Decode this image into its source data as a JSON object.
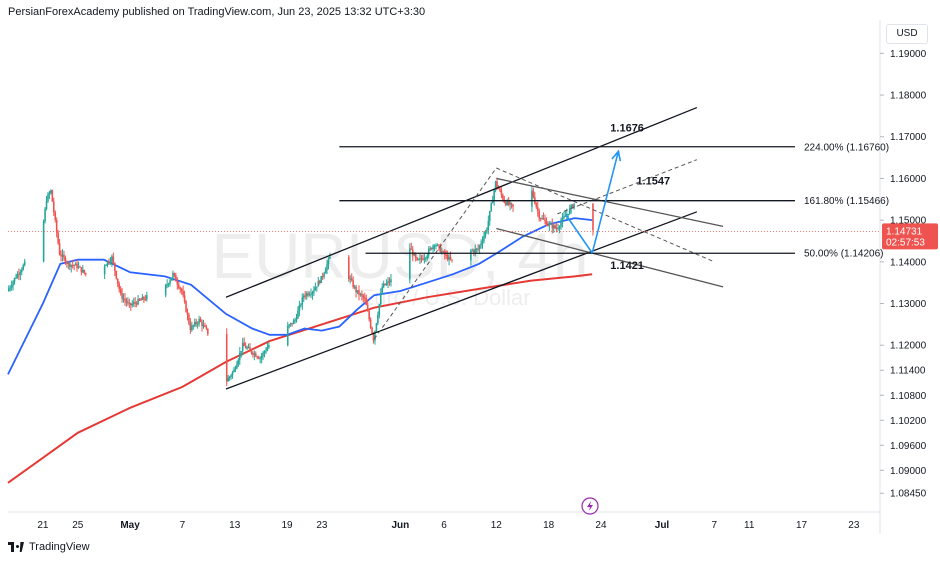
{
  "header": {
    "text": "PersianForexAcademy published on TradingView.com, Jun 23, 2025 13:32 UTC+3:30"
  },
  "footer": {
    "brand": "TradingView"
  },
  "currency_button": "USD",
  "watermark": {
    "symbol": "EURUSD, 4h",
    "name": "Euro / U.S. Dollar"
  },
  "colors": {
    "up": "#26a69a",
    "down": "#ef5350",
    "ma_fast": "#2962ff",
    "ma_slow": "#e53935",
    "text": "#131722",
    "price_tag": "#ef5350",
    "arrow": "#2196f3"
  },
  "chart_data": {
    "type": "candlestick",
    "symbol": "EURUSD",
    "timeframe": "4h",
    "x_range": [
      "2025-04-17",
      "2025-07-26"
    ],
    "ylim": [
      1.08,
      1.198
    ],
    "x_ticks": [
      {
        "label": "21",
        "date": "2025-04-21"
      },
      {
        "label": "25",
        "date": "2025-04-25"
      },
      {
        "label": "May",
        "date": "2025-05-01"
      },
      {
        "label": "7",
        "date": "2025-05-07"
      },
      {
        "label": "13",
        "date": "2025-05-13"
      },
      {
        "label": "19",
        "date": "2025-05-19"
      },
      {
        "label": "23",
        "date": "2025-05-23"
      },
      {
        "label": "Jun",
        "date": "2025-06-01"
      },
      {
        "label": "6",
        "date": "2025-06-06"
      },
      {
        "label": "12",
        "date": "2025-06-12"
      },
      {
        "label": "18",
        "date": "2025-06-18"
      },
      {
        "label": "24",
        "date": "2025-06-24"
      },
      {
        "label": "Jul",
        "date": "2025-07-01"
      },
      {
        "label": "7",
        "date": "2025-07-07"
      },
      {
        "label": "11",
        "date": "2025-07-11"
      },
      {
        "label": "17",
        "date": "2025-07-17"
      },
      {
        "label": "23",
        "date": "2025-07-23"
      }
    ],
    "y_ticks": [
      "1.19000",
      "1.18000",
      "1.17000",
      "1.16000",
      "1.15000",
      "1.14000",
      "1.13000",
      "1.12000",
      "1.11400",
      "1.10800",
      "1.10200",
      "1.09600",
      "1.09000",
      "1.08450"
    ],
    "last_price": {
      "value": 1.14731,
      "label": "1.14731",
      "countdown": "02:57:53"
    },
    "price_path": [
      [
        "2025-04-17",
        1.133
      ],
      [
        "2025-04-18",
        1.1365
      ],
      [
        "2025-04-19",
        1.1395
      ],
      [
        "2025-04-20",
        1.1405
      ],
      [
        "2025-04-21",
        1.147
      ],
      [
        "2025-04-21T12",
        1.155
      ],
      [
        "2025-04-22",
        1.157
      ],
      [
        "2025-04-23",
        1.142
      ],
      [
        "2025-04-24",
        1.1395
      ],
      [
        "2025-04-25",
        1.139
      ],
      [
        "2025-04-26",
        1.137
      ],
      [
        "2025-04-28",
        1.139
      ],
      [
        "2025-04-29",
        1.141
      ],
      [
        "2025-04-30",
        1.132
      ],
      [
        "2025-05-01",
        1.1295
      ],
      [
        "2025-05-02",
        1.1305
      ],
      [
        "2025-05-05",
        1.1335
      ],
      [
        "2025-05-06",
        1.137
      ],
      [
        "2025-05-07",
        1.133
      ],
      [
        "2025-05-08",
        1.124
      ],
      [
        "2025-05-09",
        1.126
      ],
      [
        "2025-05-10",
        1.123
      ],
      [
        "2025-05-11",
        1.125
      ],
      [
        "2025-05-12",
        1.111
      ],
      [
        "2025-05-13",
        1.114
      ],
      [
        "2025-05-14",
        1.12
      ],
      [
        "2025-05-15",
        1.1185
      ],
      [
        "2025-05-16",
        1.117
      ],
      [
        "2025-05-17",
        1.12
      ],
      [
        "2025-05-19",
        1.124
      ],
      [
        "2025-05-20",
        1.126
      ],
      [
        "2025-05-21",
        1.132
      ],
      [
        "2025-05-22",
        1.133
      ],
      [
        "2025-05-23",
        1.136
      ],
      [
        "2025-05-24",
        1.141
      ],
      [
        "2025-05-25",
        1.14
      ],
      [
        "2025-05-26",
        1.137
      ],
      [
        "2025-05-27",
        1.133
      ],
      [
        "2025-05-28",
        1.131
      ],
      [
        "2025-05-29",
        1.1215
      ],
      [
        "2025-05-30",
        1.134
      ],
      [
        "2025-06-01",
        1.137
      ],
      [
        "2025-06-02",
        1.144
      ],
      [
        "2025-06-03",
        1.14
      ],
      [
        "2025-06-04",
        1.1415
      ],
      [
        "2025-06-05",
        1.1445
      ],
      [
        "2025-06-06",
        1.142
      ],
      [
        "2025-06-07",
        1.14
      ],
      [
        "2025-06-08",
        1.141
      ],
      [
        "2025-06-09",
        1.1425
      ],
      [
        "2025-06-10",
        1.143
      ],
      [
        "2025-06-11",
        1.148
      ],
      [
        "2025-06-12",
        1.159
      ],
      [
        "2025-06-13",
        1.1545
      ],
      [
        "2025-06-14",
        1.153
      ],
      [
        "2025-06-15",
        1.156
      ],
      [
        "2025-06-16",
        1.158
      ],
      [
        "2025-06-17",
        1.151
      ],
      [
        "2025-06-18",
        1.149
      ],
      [
        "2025-06-19",
        1.148
      ],
      [
        "2025-06-20",
        1.151
      ],
      [
        "2025-06-21",
        1.154
      ],
      [
        "2025-06-22",
        1.147
      ],
      [
        "2025-06-23",
        1.1473
      ]
    ],
    "ma_fast_path": [
      [
        "2025-04-17",
        1.113
      ],
      [
        "2025-04-21",
        1.13
      ],
      [
        "2025-04-23",
        1.1395
      ],
      [
        "2025-04-25",
        1.1405
      ],
      [
        "2025-04-28",
        1.1405
      ],
      [
        "2025-05-01",
        1.1375
      ],
      [
        "2025-05-05",
        1.1365
      ],
      [
        "2025-05-08",
        1.1345
      ],
      [
        "2025-05-10",
        1.131
      ],
      [
        "2025-05-12",
        1.1275
      ],
      [
        "2025-05-15",
        1.124
      ],
      [
        "2025-05-17",
        1.1225
      ],
      [
        "2025-05-19",
        1.1225
      ],
      [
        "2025-05-21",
        1.124
      ],
      [
        "2025-05-23",
        1.1235
      ],
      [
        "2025-05-25",
        1.1245
      ],
      [
        "2025-05-27",
        1.1285
      ],
      [
        "2025-05-29",
        1.132
      ],
      [
        "2025-06-01",
        1.133
      ],
      [
        "2025-06-04",
        1.135
      ],
      [
        "2025-06-07",
        1.137
      ],
      [
        "2025-06-10",
        1.1395
      ],
      [
        "2025-06-12",
        1.142
      ],
      [
        "2025-06-15",
        1.146
      ],
      [
        "2025-06-18",
        1.149
      ],
      [
        "2025-06-21",
        1.1505
      ],
      [
        "2025-06-23",
        1.15
      ]
    ],
    "ma_slow_path": [
      [
        "2025-04-17",
        1.087
      ],
      [
        "2025-04-21",
        1.093
      ],
      [
        "2025-04-25",
        1.099
      ],
      [
        "2025-05-01",
        1.105
      ],
      [
        "2025-05-07",
        1.11
      ],
      [
        "2025-05-12",
        1.116
      ],
      [
        "2025-05-17",
        1.121
      ],
      [
        "2025-05-23",
        1.125
      ],
      [
        "2025-05-29",
        1.129
      ],
      [
        "2025-06-04",
        1.1315
      ],
      [
        "2025-06-10",
        1.1335
      ],
      [
        "2025-06-16",
        1.1355
      ],
      [
        "2025-06-21",
        1.1365
      ],
      [
        "2025-06-23",
        1.137
      ]
    ],
    "annotations": {
      "channel_lines": [
        {
          "from": [
            "2025-05-12",
            1.1095
          ],
          "to": [
            "2025-07-05",
            1.152
          ],
          "color": "#131722"
        },
        {
          "from": [
            "2025-05-12",
            1.1315
          ],
          "to": [
            "2025-07-05",
            1.177
          ],
          "color": "#131722"
        },
        {
          "from": [
            "2025-06-12",
            1.16
          ],
          "to": [
            "2025-07-08",
            1.1485
          ],
          "color": "#555555"
        },
        {
          "from": [
            "2025-06-12",
            1.148
          ],
          "to": [
            "2025-07-08",
            1.134
          ],
          "color": "#555555"
        }
      ],
      "dashed_lines": [
        {
          "from": [
            "2025-05-29",
            1.1215
          ],
          "to": [
            "2025-06-12",
            1.1625
          ]
        },
        {
          "from": [
            "2025-06-12",
            1.1625
          ],
          "to": [
            "2025-07-07",
            1.14
          ]
        },
        {
          "from": [
            "2025-06-19",
            1.1515
          ],
          "to": [
            "2025-07-05",
            1.1645
          ]
        }
      ],
      "fib_levels": [
        {
          "value": 1.1676,
          "label": "224.00% (1.16760)",
          "from": "2025-05-25"
        },
        {
          "value": 1.15466,
          "label": "161.80% (1.15466)",
          "from": "2025-05-25"
        },
        {
          "value": 1.14206,
          "label": "50.00% (1.14206)",
          "from": "2025-05-28"
        }
      ],
      "price_labels": [
        {
          "text": "1.1676",
          "at": [
            "2025-06-27",
            1.1712
          ]
        },
        {
          "text": "1.1547",
          "at": [
            "2025-06-30",
            1.1585
          ]
        },
        {
          "text": "1.1421",
          "at": [
            "2025-06-27",
            1.1383
          ]
        }
      ],
      "arrows": [
        {
          "from": [
            "2025-06-23",
            1.1421
          ],
          "via": [
            "2025-06-20",
            1.1512
          ]
        },
        {
          "from": [
            "2025-06-23",
            1.1421
          ],
          "to": [
            "2025-06-26",
            1.1665
          ]
        }
      ]
    }
  }
}
